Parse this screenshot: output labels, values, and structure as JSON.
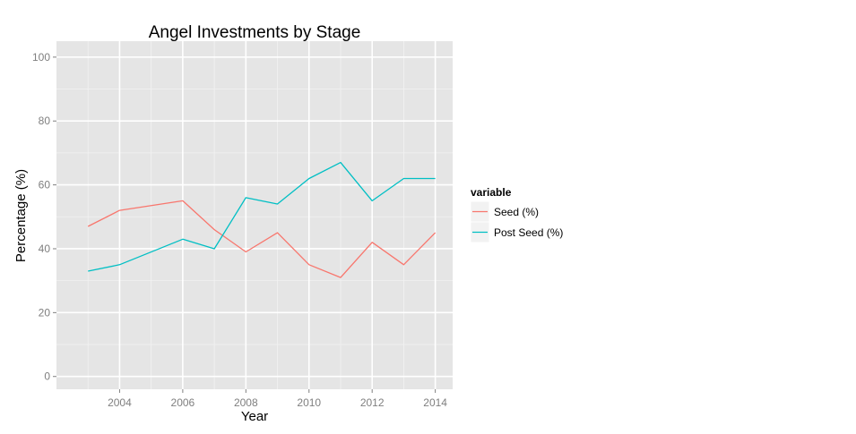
{
  "chart_data": {
    "type": "line",
    "title": "Angel Investments by Stage",
    "xlabel": "Year",
    "ylabel": "Percentage (%)",
    "x": [
      2003,
      2004,
      2006,
      2007,
      2008,
      2009,
      2010,
      2011,
      2012,
      2013,
      2014
    ],
    "xlim": [
      2002.0,
      2014.55
    ],
    "ylim": [
      -4,
      105
    ],
    "x_ticks": [
      2004,
      2006,
      2008,
      2010,
      2012,
      2014
    ],
    "y_ticks": [
      0,
      20,
      40,
      60,
      80,
      100
    ],
    "grid": true,
    "legend_title": "variable",
    "legend_position": "right",
    "series": [
      {
        "name": "Seed (%)",
        "color": "#F8766D",
        "values": [
          47,
          52,
          55,
          46,
          39,
          45,
          35,
          31,
          42,
          35,
          45
        ]
      },
      {
        "name": "Post Seed (%)",
        "color": "#00BFC4",
        "values": [
          33,
          35,
          43,
          40,
          56,
          54,
          62,
          67,
          55,
          62,
          62
        ]
      }
    ]
  }
}
